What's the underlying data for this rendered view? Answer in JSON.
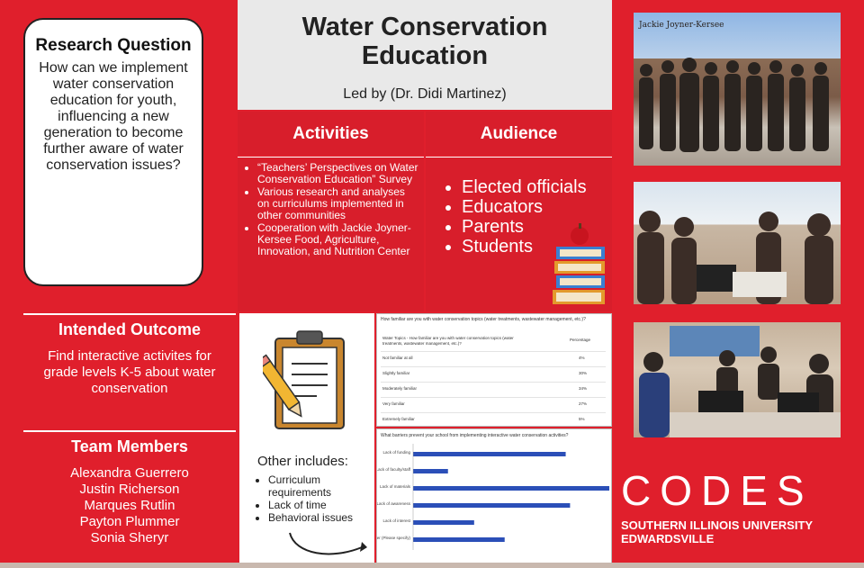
{
  "title": {
    "line1": "Water Conservation",
    "line2": "Education",
    "led_by": "Led by (Dr. Didi Martinez)"
  },
  "research_question": {
    "heading": "Research Question",
    "text": "How can we implement water conservation education for youth, influencing a new generation to become further aware of water conservation issues?"
  },
  "activities": {
    "heading": "Activities",
    "items": [
      "“Teachers’ Perspectives on Water Conservation Education” Survey",
      "Various research and analyses on curriculums implemented in other communities",
      "Cooperation with Jackie Joyner-Kersee Food, Agriculture, Innovation, and Nutrition Center"
    ]
  },
  "audience": {
    "heading": "Audience",
    "items": [
      "Elected officials",
      "Educators",
      "Parents",
      "Students"
    ]
  },
  "intended_outcome": {
    "heading": "Intended Outcome",
    "text": "Find interactive activites for grade levels K-5 about water conservation"
  },
  "team": {
    "heading": "Team Members",
    "members": [
      "Alexandra Guerrero",
      "Justin Richerson",
      "Marques Rutlin",
      "Payton Plummer",
      "Sonia Sheryr"
    ]
  },
  "other": {
    "heading": "Other includes:",
    "items": [
      "Curriculum requirements",
      "Lack of time",
      "Behavioral issues"
    ]
  },
  "survey_table": {
    "question": "How familiar are you with water conservation topics (water treatments, wastewater management, etc.)?",
    "col_topic": "Water Topics - How familiar are you with water conservation topics (water treatments, wastewater management, etc.)?",
    "col_pct": "Percentage",
    "rows": [
      {
        "label": "Not familiar at all",
        "value": "4%"
      },
      {
        "label": "Slightly familiar",
        "value": "30%"
      },
      {
        "label": "Moderately familiar",
        "value": "34%"
      },
      {
        "label": "Very familiar",
        "value": "27%"
      },
      {
        "label": "Extremely familiar",
        "value": "5%"
      }
    ]
  },
  "chart_data": {
    "type": "bar",
    "orientation": "horizontal",
    "title": "What barriers prevent your school from implementing interactive water conservation activities?",
    "categories": [
      "Lack of funding",
      "Lack of faculty/staff",
      "Lack of materials",
      "Lack of awareness",
      "Lack of interest",
      "Other (Please specify)"
    ],
    "values": [
      35,
      8,
      45,
      36,
      14,
      21
    ],
    "xlim": [
      0,
      45
    ],
    "color": "#2b4fb8"
  },
  "branding": {
    "logo_word": "CODES",
    "university_line1": "SOUTHERN ILLINOIS UNIVERSITY",
    "university_line2": "EDWARDSVILLE",
    "photo_sign": "Jackie Joyner-Kersee"
  },
  "colors": {
    "primary_red": "#d81e2b",
    "white": "#ffffff",
    "bar_blue": "#2b4fb8"
  }
}
